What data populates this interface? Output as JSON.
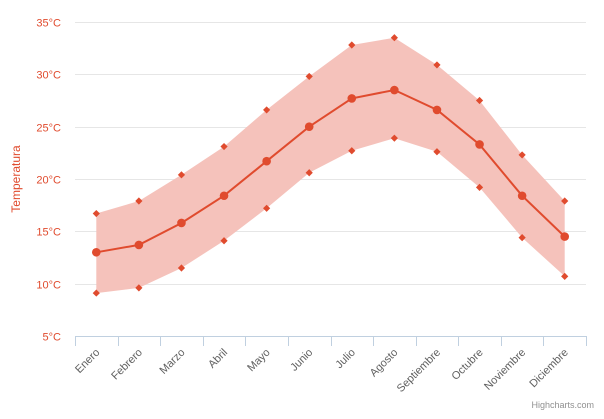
{
  "chart_data": {
    "type": "line",
    "categories": [
      "Enero",
      "Febrero",
      "Marzo",
      "Abril",
      "Mayo",
      "Junio",
      "Julio",
      "Agosto",
      "Septiembre",
      "Octubre",
      "Noviembre",
      "Diciembre"
    ],
    "ylabel": "Temperatura",
    "y_unit": "°C",
    "ylim": [
      5,
      35
    ],
    "y_ticks": [
      5,
      10,
      15,
      20,
      25,
      30,
      35
    ],
    "y_tick_labels": [
      "5°C",
      "10°C",
      "15°C",
      "20°C",
      "25°C",
      "30°C",
      "35°C"
    ],
    "grid": true,
    "series": [
      {
        "type": "line",
        "values": [
          13.0,
          13.7,
          15.8,
          18.4,
          21.7,
          25.0,
          27.7,
          28.5,
          26.6,
          23.3,
          18.4,
          14.5
        ],
        "color": "#e04b2e"
      },
      {
        "type": "arearange",
        "low": [
          9.1,
          9.6,
          11.5,
          14.1,
          17.2,
          20.6,
          22.7,
          23.9,
          22.6,
          19.2,
          14.4,
          10.7
        ],
        "high": [
          16.7,
          17.9,
          20.4,
          23.1,
          26.6,
          29.8,
          32.8,
          33.5,
          30.9,
          27.5,
          22.3,
          17.9
        ],
        "color": "#f5c2bb"
      }
    ],
    "credits": "Highcharts.com"
  }
}
